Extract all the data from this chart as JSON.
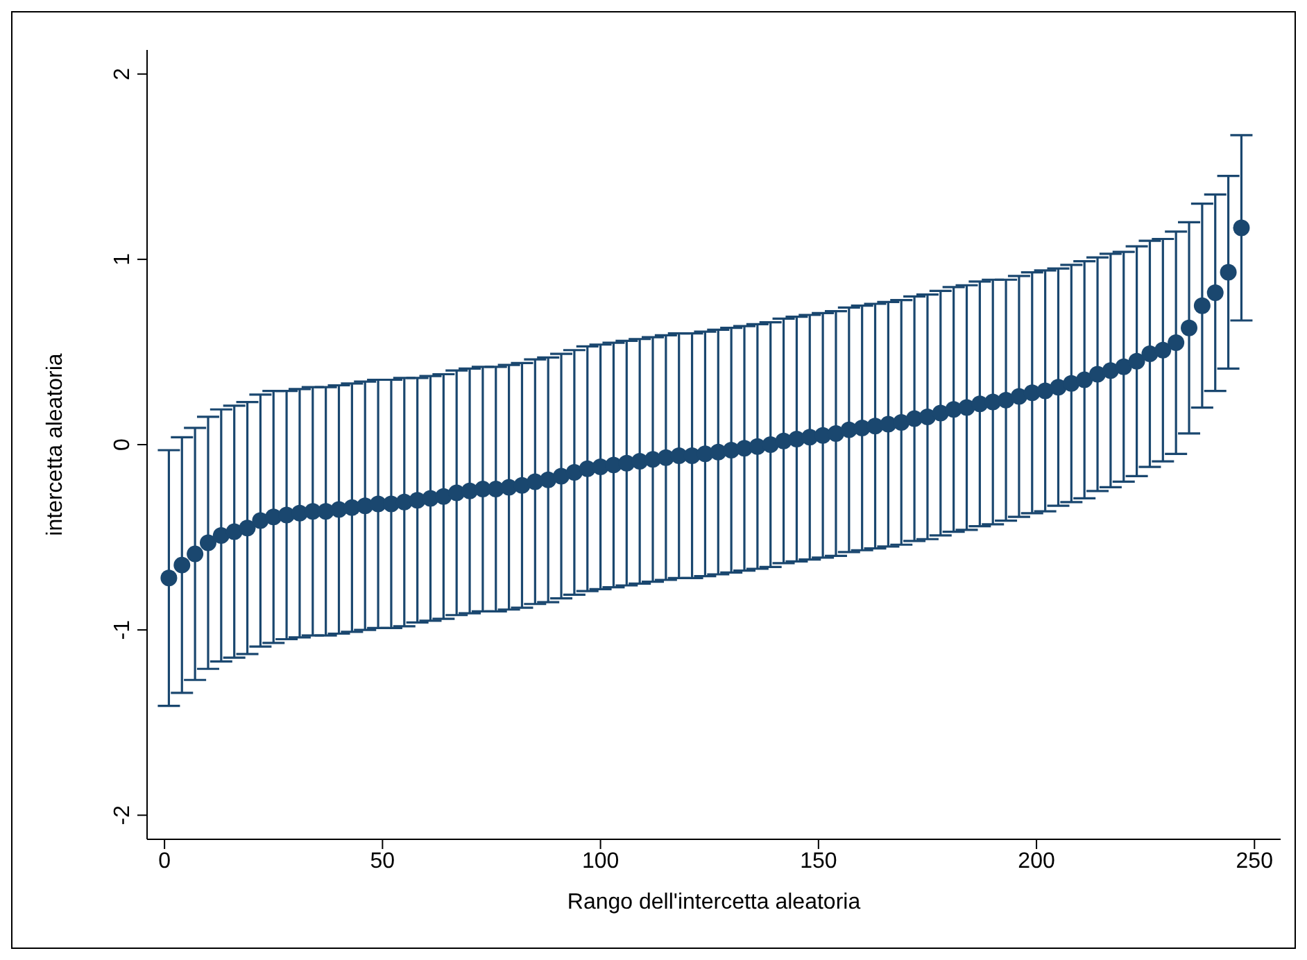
{
  "chart_data": {
    "type": "scatter",
    "xlabel": "Rango dell'intercetta aleatoria",
    "ylabel": "intercetta aleatoria",
    "x": [
      1,
      4,
      7,
      10,
      13,
      16,
      19,
      22,
      25,
      28,
      31,
      34,
      37,
      40,
      43,
      46,
      49,
      52,
      55,
      58,
      61,
      64,
      67,
      70,
      73,
      76,
      79,
      82,
      85,
      88,
      91,
      94,
      97,
      100,
      103,
      106,
      109,
      112,
      115,
      118,
      121,
      124,
      127,
      130,
      133,
      136,
      139,
      142,
      145,
      148,
      151,
      154,
      157,
      160,
      163,
      166,
      169,
      172,
      175,
      178,
      181,
      184,
      187,
      190,
      193,
      196,
      199,
      202,
      205,
      208,
      211,
      214,
      217,
      220,
      223,
      226,
      229,
      232,
      235,
      238,
      241,
      244,
      247
    ],
    "series": [
      {
        "color": "#1a476f",
        "values": [
          -0.72,
          -0.65,
          -0.59,
          -0.53,
          -0.49,
          -0.47,
          -0.45,
          -0.41,
          -0.39,
          -0.38,
          -0.37,
          -0.36,
          -0.36,
          -0.35,
          -0.34,
          -0.33,
          -0.32,
          -0.32,
          -0.31,
          -0.3,
          -0.29,
          -0.28,
          -0.26,
          -0.25,
          -0.24,
          -0.24,
          -0.23,
          -0.22,
          -0.2,
          -0.19,
          -0.17,
          -0.15,
          -0.13,
          -0.12,
          -0.11,
          -0.1,
          -0.09,
          -0.08,
          -0.07,
          -0.06,
          -0.06,
          -0.05,
          -0.04,
          -0.03,
          -0.02,
          -0.01,
          0.0,
          0.02,
          0.03,
          0.04,
          0.05,
          0.06,
          0.08,
          0.09,
          0.1,
          0.11,
          0.12,
          0.14,
          0.15,
          0.17,
          0.19,
          0.2,
          0.22,
          0.23,
          0.24,
          0.26,
          0.28,
          0.29,
          0.31,
          0.33,
          0.35,
          0.38,
          0.4,
          0.42,
          0.45,
          0.49,
          0.51,
          0.55,
          0.63,
          0.75,
          0.82,
          0.93,
          1.17
        ],
        "errors": [
          0.69,
          0.69,
          0.68,
          0.68,
          0.68,
          0.68,
          0.68,
          0.68,
          0.68,
          0.67,
          0.67,
          0.67,
          0.67,
          0.67,
          0.67,
          0.67,
          0.67,
          0.67,
          0.67,
          0.66,
          0.66,
          0.66,
          0.66,
          0.66,
          0.66,
          0.66,
          0.66,
          0.66,
          0.66,
          0.66,
          0.66,
          0.66,
          0.66,
          0.66,
          0.66,
          0.66,
          0.66,
          0.66,
          0.66,
          0.66,
          0.66,
          0.66,
          0.66,
          0.66,
          0.66,
          0.66,
          0.66,
          0.66,
          0.66,
          0.66,
          0.66,
          0.66,
          0.66,
          0.66,
          0.66,
          0.66,
          0.66,
          0.66,
          0.66,
          0.66,
          0.66,
          0.66,
          0.66,
          0.66,
          0.65,
          0.65,
          0.65,
          0.65,
          0.64,
          0.64,
          0.64,
          0.63,
          0.63,
          0.62,
          0.62,
          0.61,
          0.6,
          0.6,
          0.57,
          0.55,
          0.53,
          0.52,
          0.5
        ]
      }
    ],
    "xlim": [
      -4,
      256
    ],
    "xticks": [
      0,
      50,
      100,
      150,
      200,
      250
    ],
    "ylim": [
      -2.13,
      2.13
    ],
    "yticks": [
      -2,
      -1,
      0,
      1,
      2
    ],
    "marker": "circle",
    "grid": false,
    "legend": false
  }
}
